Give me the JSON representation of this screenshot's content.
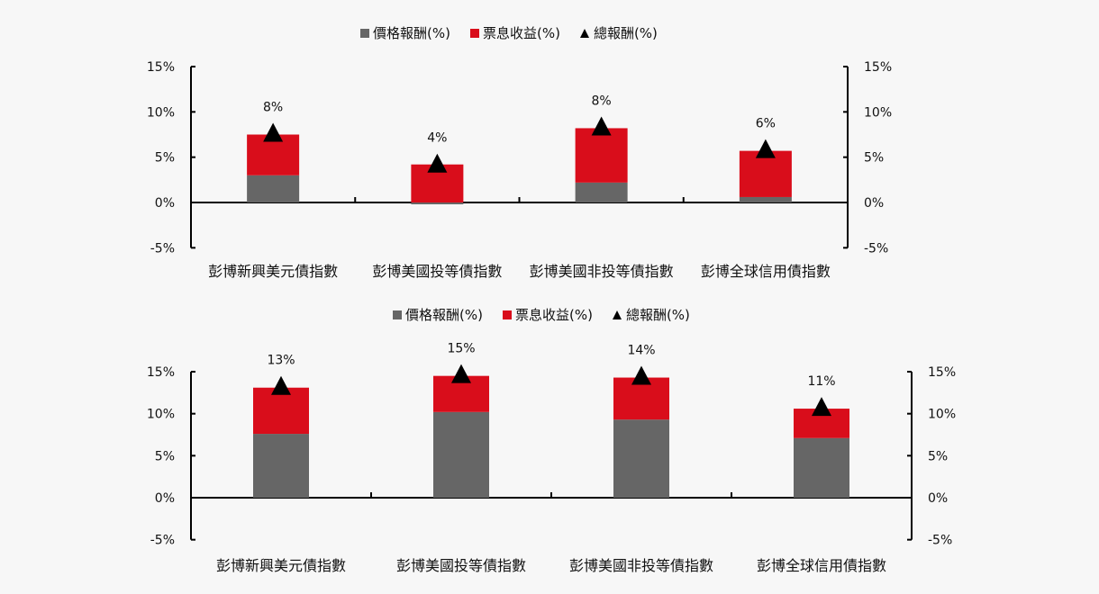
{
  "legend": {
    "price": "價格報酬(%)",
    "coupon": "票息收益(%)",
    "total": "總報酬(%)"
  },
  "colors": {
    "price": "#666666",
    "coupon": "#d90d1b",
    "total": "#000000",
    "background": "#f7f7f7"
  },
  "chart_data": [
    {
      "type": "bar",
      "stacked": true,
      "title": "",
      "xlabel": "",
      "ylabel": "",
      "ylim": [
        -5,
        15
      ],
      "yticks": [
        "15%",
        "10%",
        "5%",
        "0%",
        "-5%"
      ],
      "secondary_yticks": [
        "15%",
        "10%",
        "5%",
        "0%",
        "-5%"
      ],
      "categories": [
        "彭博新興美元債指數",
        "彭博美國投等債指數",
        "彭博美國非投等債指數",
        "彭博全球信用債指數"
      ],
      "series": [
        {
          "name": "價格報酬(%)",
          "type": "bar",
          "values": [
            3.0,
            -0.1,
            2.2,
            0.6
          ]
        },
        {
          "name": "票息收益(%)",
          "type": "bar",
          "values": [
            4.5,
            4.2,
            6.0,
            5.1
          ]
        },
        {
          "name": "總報酬(%)",
          "type": "marker-triangle",
          "values": [
            7.5,
            4.1,
            8.2,
            5.7
          ]
        }
      ],
      "data_labels": [
        "8%",
        "4%",
        "8%",
        "6%"
      ],
      "legend_position": "top"
    },
    {
      "type": "bar",
      "stacked": true,
      "title": "",
      "xlabel": "",
      "ylabel": "",
      "ylim": [
        -5,
        15
      ],
      "yticks": [
        "15%",
        "10%",
        "5%",
        "0%",
        "-5%"
      ],
      "secondary_yticks": [
        "15%",
        "10%",
        "5%",
        "0%",
        "-5%"
      ],
      "categories": [
        "彭博新興美元債指數",
        "彭博美國投等債指數",
        "彭博美國非投等債指數",
        "彭博全球信用債指數"
      ],
      "series": [
        {
          "name": "價格報酬(%)",
          "type": "bar",
          "values": [
            7.6,
            10.2,
            9.3,
            7.1
          ]
        },
        {
          "name": "票息收益(%)",
          "type": "bar",
          "values": [
            5.5,
            4.3,
            5.0,
            3.5
          ]
        },
        {
          "name": "總報酬(%)",
          "type": "marker-triangle",
          "values": [
            13.1,
            14.5,
            14.3,
            10.6
          ]
        }
      ],
      "data_labels": [
        "13%",
        "15%",
        "14%",
        "11%"
      ],
      "legend_position": "top"
    }
  ]
}
